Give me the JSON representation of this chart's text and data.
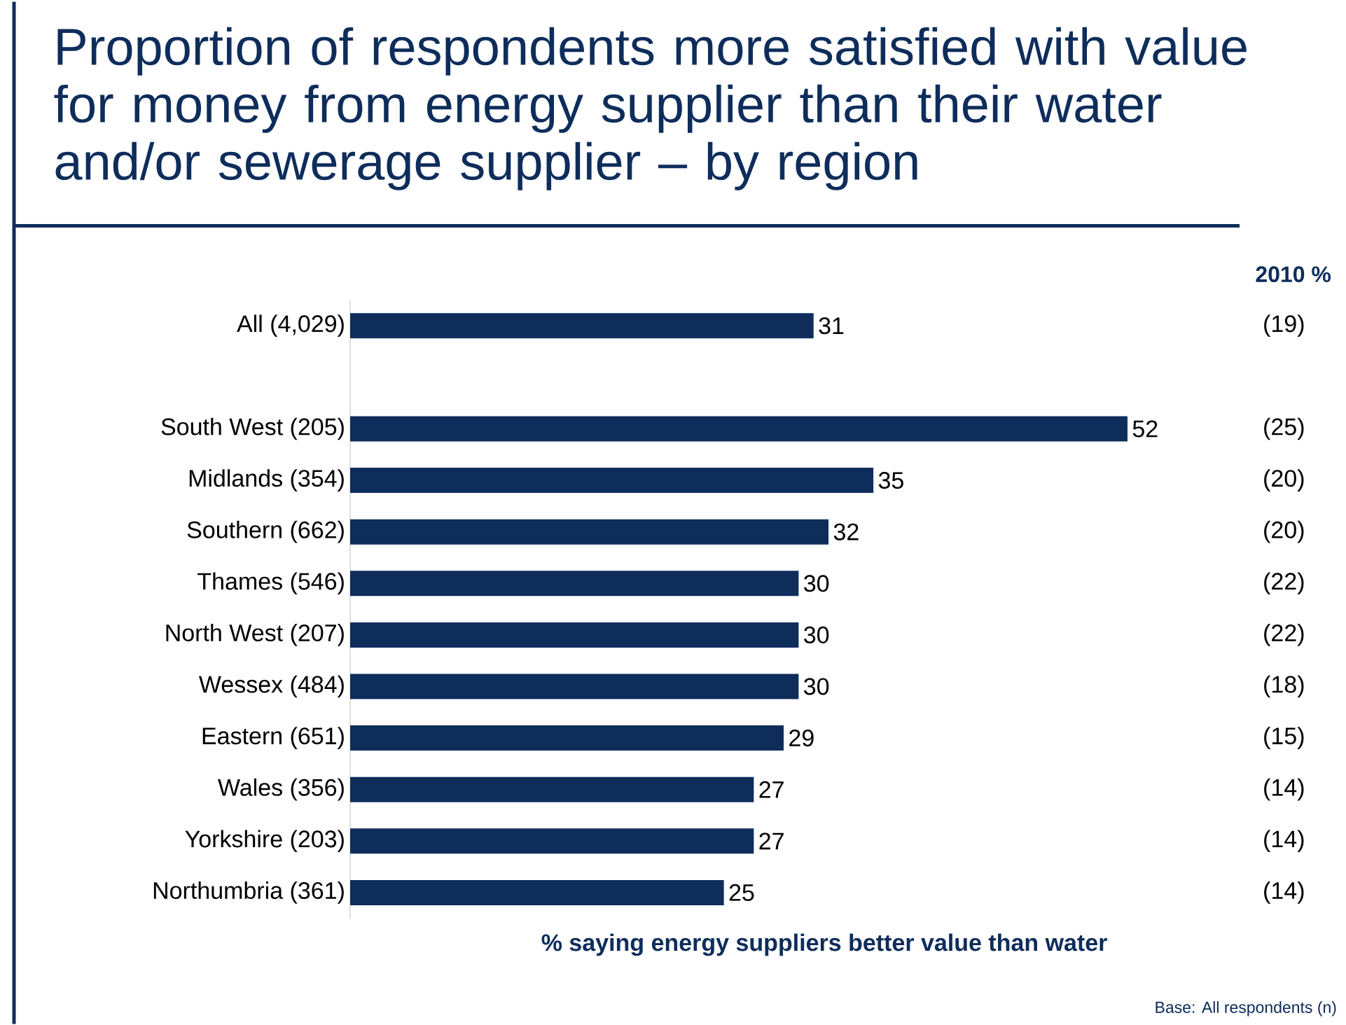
{
  "chart_data": {
    "type": "bar",
    "orientation": "horizontal",
    "title": "Proportion of respondents more satisfied with value for money from energy supplier than their water and/or sewerage supplier – by region",
    "xlabel": "% saying energy suppliers better value than water",
    "categories": [
      "All (4,029)",
      null,
      "South West (205)",
      "Midlands (354)",
      "Southern (662)",
      "Thames (546)",
      "North West (207)",
      "Wessex (484)",
      "Eastern (651)",
      "Wales (356)",
      "Yorkshire (203)",
      "Northumbria (361)"
    ],
    "values": [
      31,
      null,
      52,
      35,
      32,
      30,
      30,
      30,
      29,
      27,
      27,
      25
    ],
    "color": "#0e2d5b",
    "data_labels": true,
    "annotations": [
      "2010 %",
      "(19)",
      "(25)",
      "(20)",
      "(20)",
      "(22)",
      "(22)",
      "(18)",
      "(15)",
      "(14)",
      "(14)",
      "(14)",
      "Base: All respondents (n)"
    ]
  }
}
